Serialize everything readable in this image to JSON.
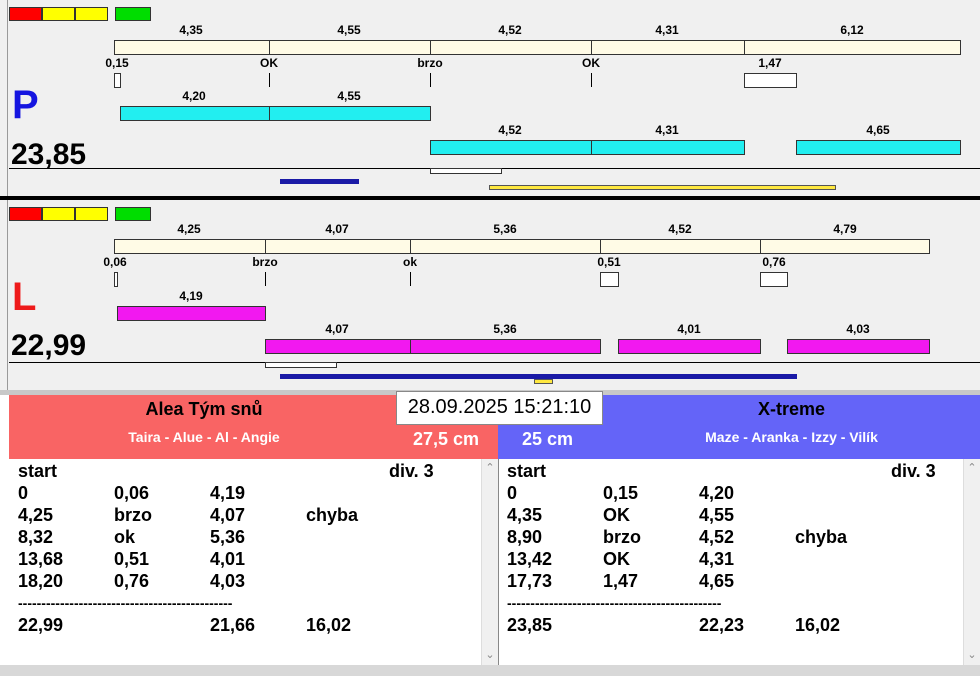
{
  "colors": {
    "red": "#ff0000",
    "yellow": "#ffff00",
    "green": "#00dd00",
    "blue": "#1a1aa6",
    "yellowbar": "#ffe840",
    "cream": "#fffbe6",
    "cyan": "#22eef0",
    "magenta": "#f218f0",
    "team_left_bg": "#f96464",
    "team_right_bg": "#6464f8",
    "p_color": "#1515e0",
    "l_color": "#ee1a1a"
  },
  "top": {
    "letter": "P",
    "total": "23,85",
    "row1_labels": [
      "4,35",
      "4,55",
      "4,52",
      "4,31",
      "6,12"
    ],
    "reaction_labels": [
      "0,15",
      "OK",
      "brzo",
      "OK",
      "1,47"
    ],
    "row2_labels": [
      "4,20",
      "4,55"
    ],
    "row3_labels": [
      "4,52",
      "4,31",
      "4,65"
    ]
  },
  "bottom": {
    "letter": "L",
    "total": "22,99",
    "row1_labels": [
      "4,25",
      "4,07",
      "5,36",
      "4,52",
      "4,79"
    ],
    "reaction_labels": [
      "0,06",
      "brzo",
      "ok",
      "0,51",
      "0,76"
    ],
    "row2_labels": [
      "4,19"
    ],
    "row3_labels": [
      "4,07",
      "5,36",
      "4,01",
      "4,03"
    ]
  },
  "timestamp": "28.09.2025 15:21:10",
  "team_left": {
    "name": "Alea Tým snů",
    "members": "Taira - Alue - Al - Angie",
    "height": "27,5 cm"
  },
  "team_right": {
    "name": "X-treme",
    "members": "Maze - Aranka - Izzy - Vilík",
    "height": "25 cm"
  },
  "list_left": {
    "header": [
      "start",
      "div. 3"
    ],
    "rows": [
      [
        "0",
        "0,06",
        "4,19",
        ""
      ],
      [
        "4,25",
        "brzo",
        "4,07",
        "chyba"
      ],
      [
        "8,32",
        "ok",
        "5,36",
        ""
      ],
      [
        "13,68",
        "0,51",
        "4,01",
        ""
      ],
      [
        "18,20",
        "0,76",
        "4,03",
        ""
      ]
    ],
    "separator": "----------------------------------------------",
    "totals": [
      "22,99",
      "21,66",
      "16,02"
    ]
  },
  "list_right": {
    "header": [
      "start",
      "div. 3"
    ],
    "rows": [
      [
        "0",
        "0,15",
        "4,20",
        ""
      ],
      [
        "4,35",
        "OK",
        "4,55",
        ""
      ],
      [
        "8,90",
        "brzo",
        "4,52",
        "chyba"
      ],
      [
        "13,42",
        "OK",
        "4,31",
        ""
      ],
      [
        "17,73",
        "1,47",
        "4,65",
        ""
      ]
    ],
    "separator": "----------------------------------------------",
    "totals": [
      "23,85",
      "22,23",
      "16,02"
    ]
  }
}
